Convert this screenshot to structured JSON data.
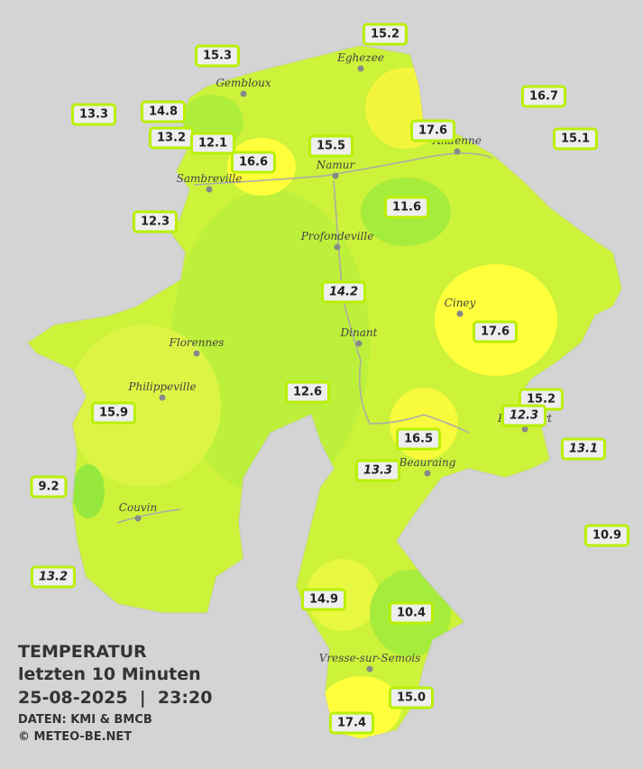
{
  "title": {
    "heading": "TEMPERATUR",
    "period": "letzten 10 Minuten",
    "timestamp": "25-08-2025  |  23:20",
    "source": "DATEN: KMI & BMCB",
    "copyright": "© METEO-BE.NET"
  },
  "cities": [
    "Eghezee",
    "Gembloux",
    "Andenne",
    "Namur",
    "Sambreville",
    "Profondeville",
    "Ciney",
    "Dinant",
    "Florennes",
    "Philippeville",
    "Rochefort",
    "Beauraing",
    "Couvin",
    "Vresse-sur-Semois"
  ],
  "stations": [
    "15.2",
    "15.3",
    "16.7",
    "13.3",
    "14.8",
    "17.6",
    "15.1",
    "13.2",
    "12.1",
    "15.5",
    "16.6",
    "11.6",
    "12.3",
    "14.2",
    "17.6",
    "12.6",
    "15.2",
    "12.3",
    "15.9",
    "16.5",
    "13.1",
    "13.3",
    "9.2",
    "10.9",
    "13.2",
    "14.9",
    "10.4",
    "15.0",
    "17.4"
  ]
}
